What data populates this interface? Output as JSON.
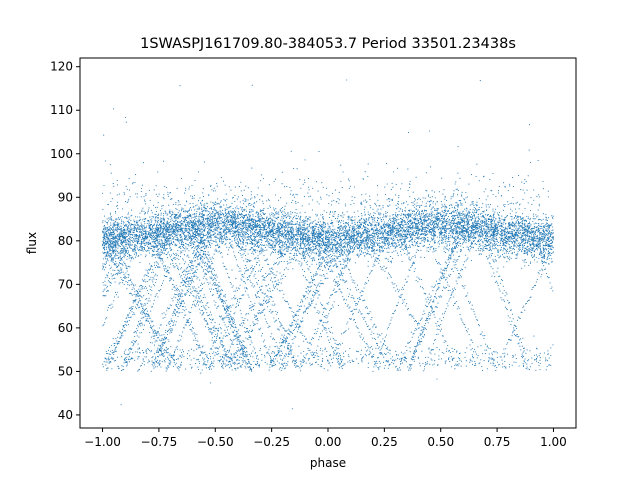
{
  "chart_data": {
    "type": "scatter",
    "title": "1SWASPJ161709.80-384053.7 Period 33501.23438s",
    "xlabel": "phase",
    "ylabel": "flux",
    "xlim": [
      -1.1,
      1.1
    ],
    "ylim": [
      37,
      122
    ],
    "xticks": [
      -1.0,
      -0.75,
      -0.5,
      -0.25,
      0.0,
      0.25,
      0.5,
      0.75,
      1.0
    ],
    "xtick_labels": [
      "−1.00",
      "−0.75",
      "−0.50",
      "−0.25",
      "0.00",
      "0.25",
      "0.50",
      "0.75",
      "1.00"
    ],
    "yticks": [
      40,
      50,
      60,
      70,
      80,
      90,
      100,
      110,
      120
    ],
    "ytick_labels": [
      "40",
      "50",
      "60",
      "70",
      "80",
      "90",
      "100",
      "110",
      "120"
    ],
    "grid": false,
    "marker_color": "#1f77b4",
    "series": [
      {
        "x_range": [
          -1.0,
          1.0
        ],
        "baseline_flux": 82,
        "baseline_scatter": 2.5,
        "baseline_modulation": [
          {
            "phase": 0.0,
            "flux": 80
          },
          {
            "phase": 0.5,
            "flux": 83.5
          },
          {
            "phase": 1.0,
            "flux": 81
          }
        ],
        "lower_floor_flux": 50,
        "outlier_range": [
          40,
          118
        ]
      }
    ]
  }
}
